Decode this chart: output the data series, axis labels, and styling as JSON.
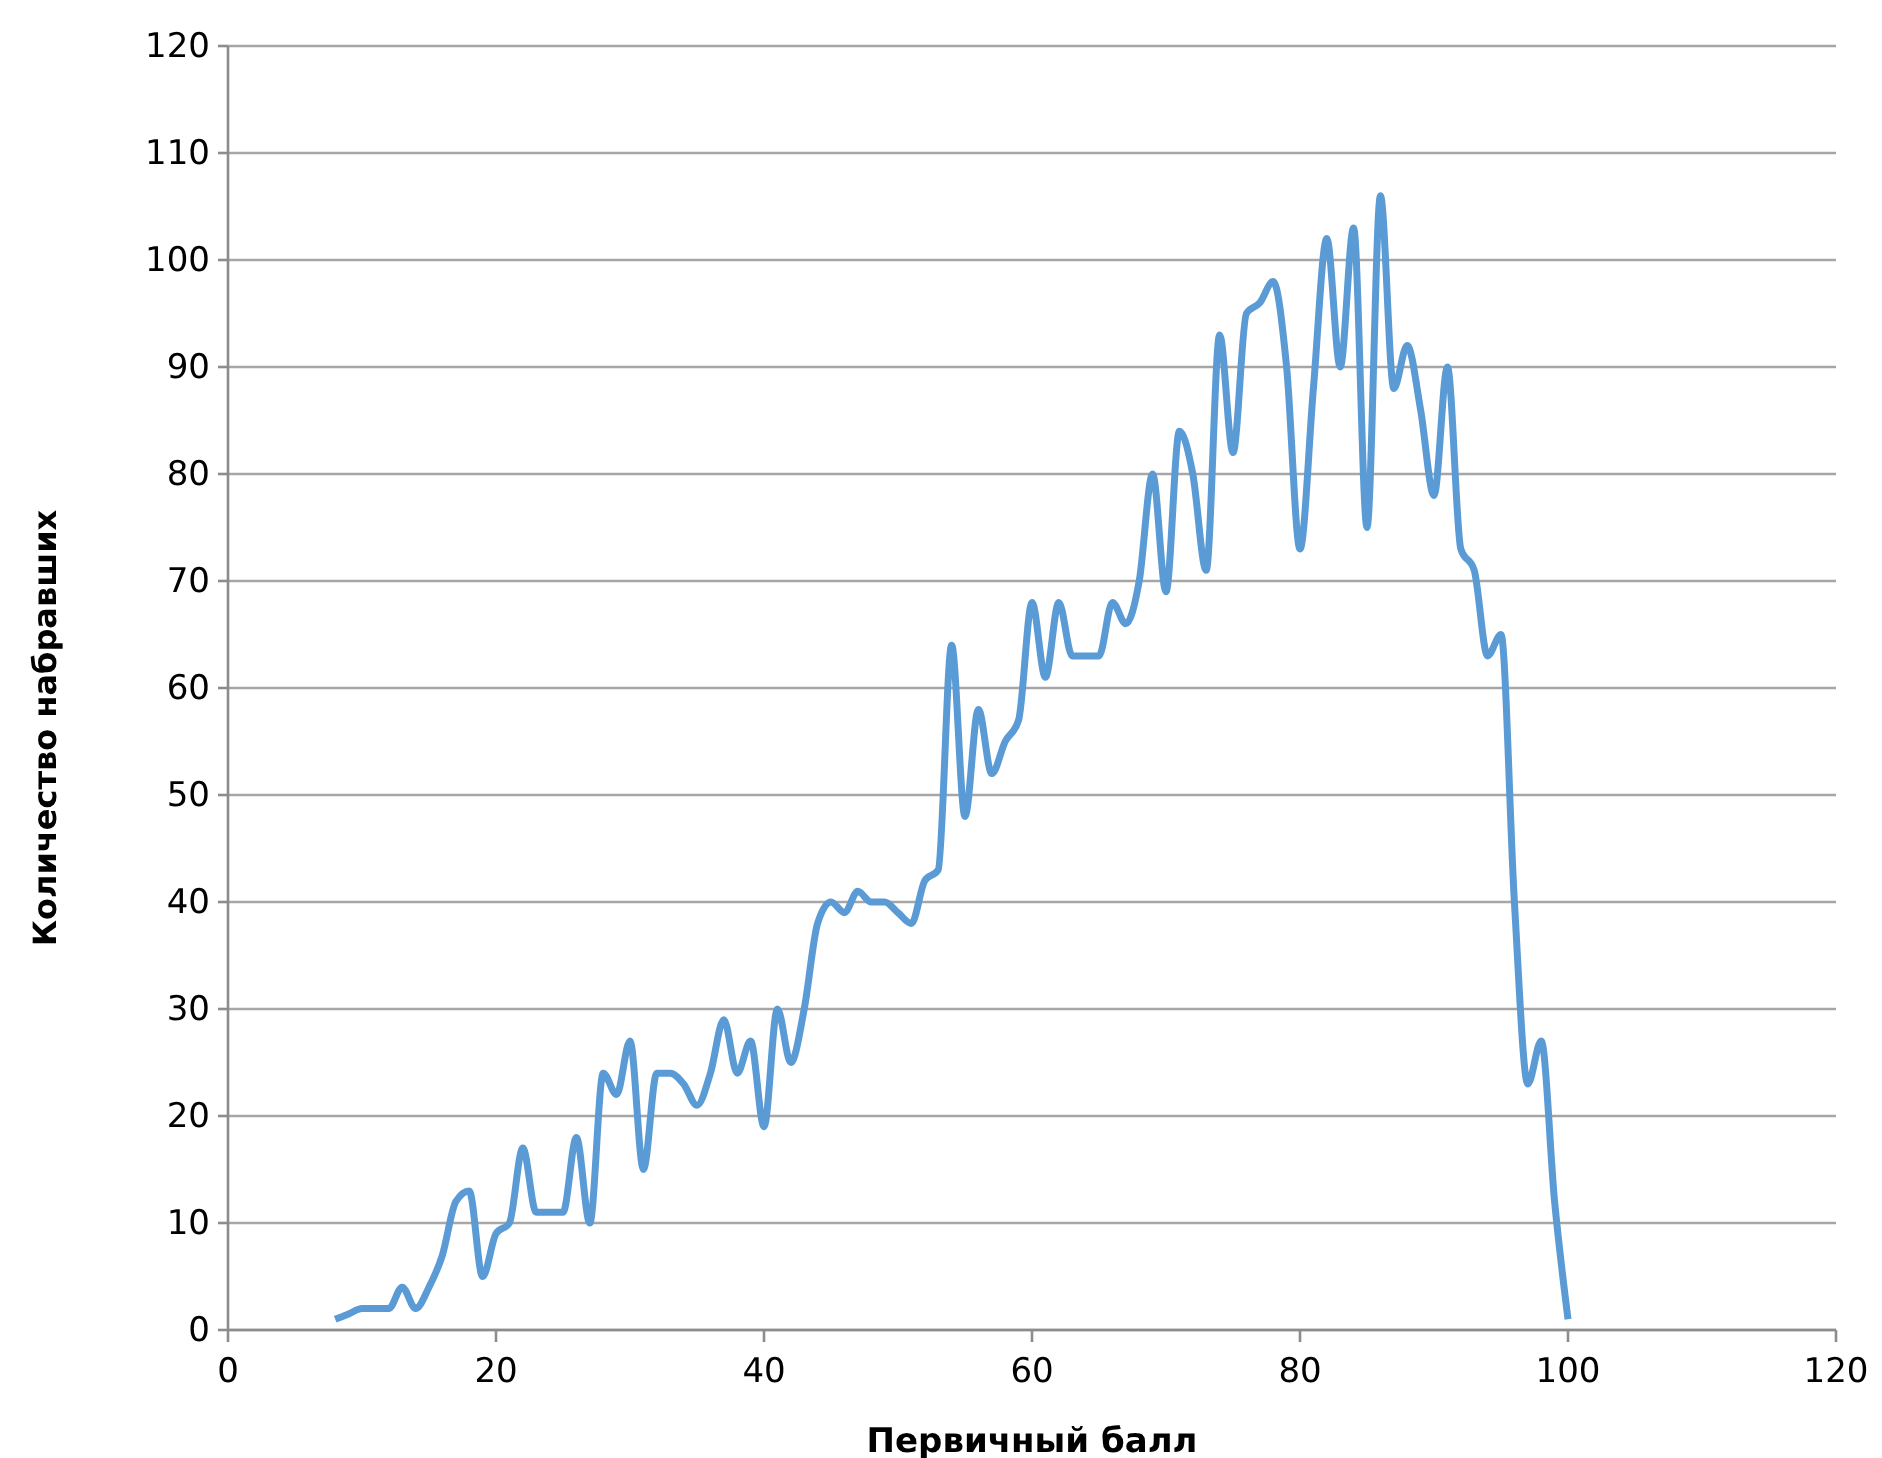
{
  "chart_data": {
    "type": "line",
    "xlabel": "Первичный балл",
    "ylabel": "Количество набравших",
    "x": [
      8,
      9,
      10,
      11,
      12,
      13,
      14,
      15,
      16,
      17,
      18,
      19,
      20,
      21,
      22,
      23,
      24,
      25,
      26,
      27,
      28,
      29,
      30,
      31,
      32,
      33,
      34,
      35,
      36,
      37,
      38,
      39,
      40,
      41,
      42,
      43,
      44,
      45,
      46,
      47,
      48,
      49,
      50,
      51,
      52,
      53,
      54,
      55,
      56,
      57,
      58,
      59,
      60,
      61,
      62,
      63,
      64,
      65,
      66,
      67,
      68,
      69,
      70,
      71,
      72,
      73,
      74,
      75,
      76,
      77,
      78,
      79,
      80,
      81,
      82,
      83,
      84,
      85,
      86,
      87,
      88,
      89,
      90,
      91,
      92,
      93,
      94,
      95,
      96,
      97,
      98,
      99,
      100
    ],
    "series": [
      {
        "color": "#5b9bd5",
        "values": [
          1,
          1.5,
          2,
          2,
          2,
          4,
          2,
          4,
          7,
          12,
          13,
          5,
          9,
          10,
          17,
          11,
          11,
          11,
          18,
          10,
          24,
          22,
          27,
          15,
          24,
          24,
          23,
          21,
          24,
          29,
          24,
          27,
          19,
          30,
          25,
          30,
          38,
          40,
          39,
          41,
          40,
          40,
          39,
          38,
          42,
          43,
          64,
          48,
          58,
          52,
          55,
          57,
          68,
          61,
          68,
          63,
          63,
          63,
          68,
          66,
          70,
          80,
          69,
          84,
          80,
          71,
          93,
          82,
          95,
          96,
          98,
          90,
          73,
          88,
          102,
          90,
          103,
          75,
          106,
          88,
          92,
          86,
          78,
          90,
          73,
          71,
          63,
          65,
          40,
          23,
          27,
          12,
          1
        ]
      }
    ],
    "xlim": [
      0,
      120
    ],
    "xticks": [
      0,
      20,
      40,
      60,
      80,
      100,
      120
    ],
    "ylim": [
      0,
      120
    ],
    "yticks": [
      0,
      10,
      20,
      30,
      40,
      50,
      60,
      70,
      80,
      90,
      100,
      110,
      120
    ],
    "grid": "y",
    "marker": "none",
    "line_style": "solid"
  }
}
